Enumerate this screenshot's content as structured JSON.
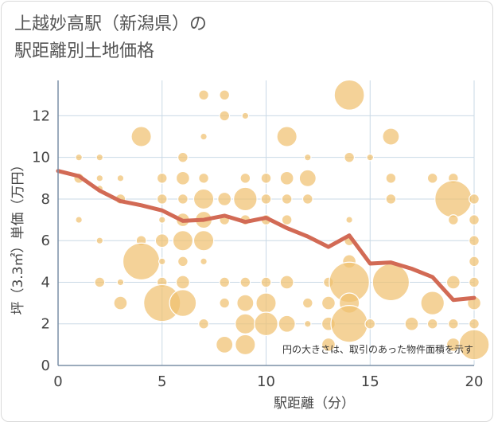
{
  "chart_data": {
    "type": "scatter",
    "title": "上越妙高駅（新潟県）の\n駅距離別土地価格",
    "xlabel": "駅距離（分）",
    "ylabel": "坪（3.3㎡）単価（万円）",
    "xlim": [
      0,
      20
    ],
    "ylim": [
      0,
      13.7
    ],
    "xticks": [
      0,
      5,
      10,
      15,
      20
    ],
    "yticks": [
      0,
      2,
      4,
      6,
      8,
      10,
      12
    ],
    "grid": true,
    "annotation": "円の大きさは、取引のあった物件面積を示す",
    "colors": {
      "bubble": "#f0c070",
      "bubble_stroke": "#ffffff",
      "line": "#d26a55",
      "grid": "#c9d9e6",
      "axis": "#7a8fa6"
    },
    "trend_line": {
      "x": [
        0,
        1,
        2,
        3,
        4,
        5,
        6,
        7,
        8,
        9,
        10,
        11,
        12,
        13,
        14,
        15,
        16,
        17,
        18,
        19,
        20
      ],
      "y": [
        9.35,
        9.1,
        8.4,
        7.9,
        7.7,
        7.45,
        6.95,
        7.0,
        7.2,
        6.9,
        7.1,
        6.6,
        6.2,
        5.7,
        6.25,
        4.9,
        4.95,
        4.65,
        4.25,
        3.15,
        3.25
      ]
    },
    "points": [
      {
        "x": 1,
        "y": 10,
        "s": 2
      },
      {
        "x": 1,
        "y": 9,
        "s": 3
      },
      {
        "x": 1,
        "y": 7,
        "s": 2
      },
      {
        "x": 2,
        "y": 10,
        "s": 2
      },
      {
        "x": 2,
        "y": 9,
        "s": 2
      },
      {
        "x": 2,
        "y": 8.5,
        "s": 2
      },
      {
        "x": 2,
        "y": 6,
        "s": 2
      },
      {
        "x": 2,
        "y": 4,
        "s": 3
      },
      {
        "x": 3,
        "y": 9,
        "s": 2
      },
      {
        "x": 3,
        "y": 8,
        "s": 3
      },
      {
        "x": 3,
        "y": 4,
        "s": 2
      },
      {
        "x": 3,
        "y": 3,
        "s": 4
      },
      {
        "x": 4,
        "y": 11,
        "s": 6
      },
      {
        "x": 4,
        "y": 6,
        "s": 3
      },
      {
        "x": 4,
        "y": 5,
        "s": 11
      },
      {
        "x": 5,
        "y": 9,
        "s": 3
      },
      {
        "x": 5,
        "y": 8,
        "s": 3
      },
      {
        "x": 5,
        "y": 7,
        "s": 2
      },
      {
        "x": 5,
        "y": 6,
        "s": 4
      },
      {
        "x": 5,
        "y": 5,
        "s": 2
      },
      {
        "x": 5,
        "y": 4,
        "s": 3
      },
      {
        "x": 5,
        "y": 3,
        "s": 11
      },
      {
        "x": 6,
        "y": 10,
        "s": 3
      },
      {
        "x": 6,
        "y": 9,
        "s": 4
      },
      {
        "x": 6,
        "y": 8,
        "s": 3
      },
      {
        "x": 6,
        "y": 7,
        "s": 4
      },
      {
        "x": 6,
        "y": 6,
        "s": 6
      },
      {
        "x": 6,
        "y": 5,
        "s": 3
      },
      {
        "x": 6,
        "y": 4,
        "s": 4
      },
      {
        "x": 6,
        "y": 3,
        "s": 8
      },
      {
        "x": 7,
        "y": 13,
        "s": 3
      },
      {
        "x": 7,
        "y": 11,
        "s": 2
      },
      {
        "x": 7,
        "y": 9,
        "s": 3
      },
      {
        "x": 7,
        "y": 8,
        "s": 6
      },
      {
        "x": 7,
        "y": 7,
        "s": 5
      },
      {
        "x": 7,
        "y": 6,
        "s": 6
      },
      {
        "x": 7,
        "y": 5,
        "s": 2
      },
      {
        "x": 7,
        "y": 2,
        "s": 3
      },
      {
        "x": 8,
        "y": 13,
        "s": 3
      },
      {
        "x": 8,
        "y": 12,
        "s": 3
      },
      {
        "x": 8,
        "y": 8,
        "s": 4
      },
      {
        "x": 8,
        "y": 7,
        "s": 3
      },
      {
        "x": 8,
        "y": 4,
        "s": 3
      },
      {
        "x": 8,
        "y": 3,
        "s": 3
      },
      {
        "x": 8,
        "y": 1,
        "s": 5
      },
      {
        "x": 9,
        "y": 12,
        "s": 2
      },
      {
        "x": 9,
        "y": 9,
        "s": 3
      },
      {
        "x": 9,
        "y": 8,
        "s": 7
      },
      {
        "x": 9,
        "y": 7,
        "s": 3
      },
      {
        "x": 9,
        "y": 4,
        "s": 3
      },
      {
        "x": 9,
        "y": 3,
        "s": 5
      },
      {
        "x": 9,
        "y": 2,
        "s": 6
      },
      {
        "x": 9,
        "y": 1,
        "s": 6
      },
      {
        "x": 10,
        "y": 9,
        "s": 3
      },
      {
        "x": 10,
        "y": 8,
        "s": 3
      },
      {
        "x": 10,
        "y": 7,
        "s": 3
      },
      {
        "x": 10,
        "y": 4,
        "s": 3
      },
      {
        "x": 10,
        "y": 3,
        "s": 6
      },
      {
        "x": 10,
        "y": 2,
        "s": 7
      },
      {
        "x": 11,
        "y": 11,
        "s": 6
      },
      {
        "x": 11,
        "y": 9,
        "s": 4
      },
      {
        "x": 11,
        "y": 8,
        "s": 3
      },
      {
        "x": 11,
        "y": 7,
        "s": 3
      },
      {
        "x": 11,
        "y": 4,
        "s": 4
      },
      {
        "x": 11,
        "y": 2,
        "s": 5
      },
      {
        "x": 12,
        "y": 10,
        "s": 2
      },
      {
        "x": 12,
        "y": 9,
        "s": 5
      },
      {
        "x": 12,
        "y": 8,
        "s": 3
      },
      {
        "x": 12,
        "y": 3,
        "s": 3
      },
      {
        "x": 12,
        "y": 2,
        "s": 2
      },
      {
        "x": 13,
        "y": 4,
        "s": 3
      },
      {
        "x": 13,
        "y": 3,
        "s": 4
      },
      {
        "x": 13,
        "y": 2,
        "s": 4
      },
      {
        "x": 13,
        "y": 1,
        "s": 4
      },
      {
        "x": 14,
        "y": 13,
        "s": 9
      },
      {
        "x": 14,
        "y": 10,
        "s": 3
      },
      {
        "x": 14,
        "y": 7,
        "s": 2
      },
      {
        "x": 14,
        "y": 6,
        "s": 3
      },
      {
        "x": 14,
        "y": 5,
        "s": 4
      },
      {
        "x": 14,
        "y": 4,
        "s": 12
      },
      {
        "x": 14,
        "y": 3,
        "s": 6
      },
      {
        "x": 14,
        "y": 2,
        "s": 11
      },
      {
        "x": 15,
        "y": 10,
        "s": 2
      },
      {
        "x": 15,
        "y": 2,
        "s": 3
      },
      {
        "x": 16,
        "y": 11,
        "s": 5
      },
      {
        "x": 16,
        "y": 9,
        "s": 3
      },
      {
        "x": 16,
        "y": 8,
        "s": 3
      },
      {
        "x": 16,
        "y": 4,
        "s": 11
      },
      {
        "x": 17,
        "y": 2,
        "s": 4
      },
      {
        "x": 18,
        "y": 9,
        "s": 3
      },
      {
        "x": 18,
        "y": 3,
        "s": 7
      },
      {
        "x": 18,
        "y": 2,
        "s": 3
      },
      {
        "x": 19,
        "y": 9,
        "s": 3
      },
      {
        "x": 19,
        "y": 8,
        "s": 11
      },
      {
        "x": 19,
        "y": 7,
        "s": 3
      },
      {
        "x": 19,
        "y": 4,
        "s": 4
      },
      {
        "x": 19,
        "y": 2,
        "s": 3
      },
      {
        "x": 19,
        "y": 1,
        "s": 4
      },
      {
        "x": 20,
        "y": 8,
        "s": 3
      },
      {
        "x": 20,
        "y": 7,
        "s": 3
      },
      {
        "x": 20,
        "y": 6,
        "s": 3
      },
      {
        "x": 20,
        "y": 5,
        "s": 3
      },
      {
        "x": 20,
        "y": 4,
        "s": 3
      },
      {
        "x": 20,
        "y": 3,
        "s": 4
      },
      {
        "x": 20,
        "y": 2,
        "s": 3
      },
      {
        "x": 20,
        "y": 1,
        "s": 9
      }
    ]
  }
}
